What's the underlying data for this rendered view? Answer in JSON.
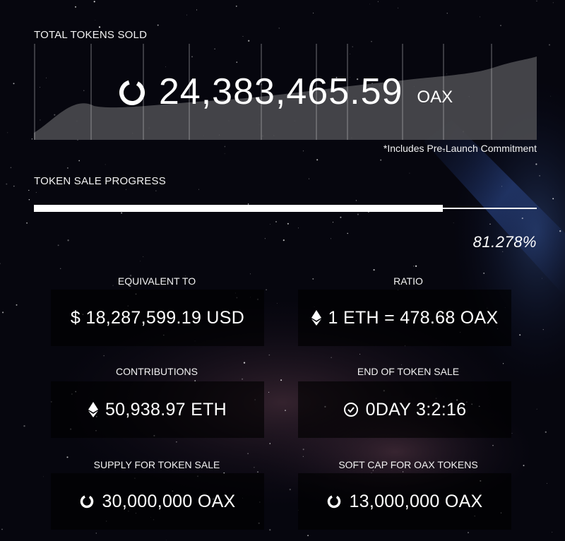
{
  "total_sold": {
    "label": "TOTAL TOKENS SOLD",
    "value": "24,383,465.59",
    "unit": "OAX",
    "footnote": "*Includes Pre-Launch Commitment",
    "icon": "spinner-icon"
  },
  "progress": {
    "label": "TOKEN SALE PROGRESS",
    "percent_text": "81.278%",
    "fraction": 0.81278
  },
  "stats": {
    "equivalent": {
      "title": "EQUIVALENT TO",
      "value": "$ 18,287,599.19 USD"
    },
    "ratio": {
      "title": "RATIO",
      "value": "1 ETH = 478.68 OAX",
      "icon": "ethereum-icon"
    },
    "contributions": {
      "title": "CONTRIBUTIONS",
      "value": "50,938.97 ETH",
      "icon": "ethereum-icon"
    },
    "end_of_sale": {
      "title": "END OF TOKEN SALE",
      "value": "0DAY 3:2:16",
      "icon": "clock-icon"
    },
    "supply": {
      "title": "SUPPLY FOR TOKEN SALE",
      "value": "30,000,000 OAX",
      "icon": "spinner-icon"
    },
    "soft_cap": {
      "title": "SOFT CAP FOR OAX TOKENS",
      "value": "13,000,000 OAX",
      "icon": "spinner-icon"
    }
  },
  "colors": {
    "text": "#ffffff",
    "background": "#05050c",
    "chart_fill": "#4a4a4f"
  }
}
